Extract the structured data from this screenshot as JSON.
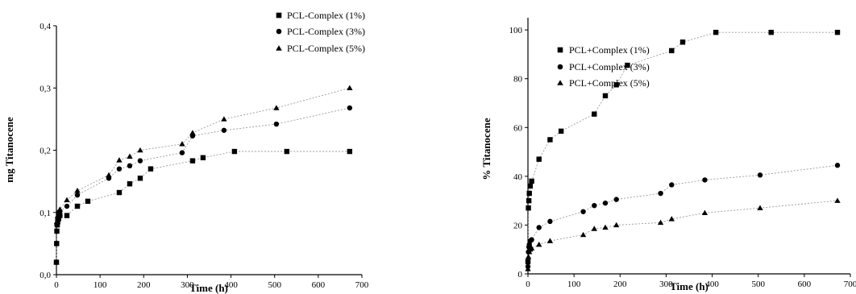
{
  "chart_data": [
    {
      "type": "scatter",
      "title": "",
      "xlabel": "Time (h)",
      "ylabel": "mg Titanocene",
      "xlim": [
        0,
        700
      ],
      "ylim": [
        0,
        0.4
      ],
      "xticks": [
        "0",
        "100",
        "200",
        "300",
        "400",
        "500",
        "600",
        "700"
      ],
      "yticks": [
        "0,0",
        "0,1",
        "0,2",
        "0,3",
        "0,4"
      ],
      "legend_position": "top-right",
      "series": [
        {
          "name": "PCL-Complex (1%)",
          "marker": "square",
          "points": [
            [
              0,
              0.02
            ],
            [
              0.5,
              0.05
            ],
            [
              1,
              0.07
            ],
            [
              2,
              0.08
            ],
            [
              3,
              0.085
            ],
            [
              5,
              0.09
            ],
            [
              8,
              0.095
            ],
            [
              24,
              0.095
            ],
            [
              48,
              0.11
            ],
            [
              72,
              0.118
            ],
            [
              144,
              0.132
            ],
            [
              168,
              0.146
            ],
            [
              192,
              0.155
            ],
            [
              216,
              0.17
            ],
            [
              312,
              0.183
            ],
            [
              336,
              0.188
            ],
            [
              408,
              0.198
            ],
            [
              528,
              0.198
            ],
            [
              672,
              0.198
            ]
          ]
        },
        {
          "name": "PCL-Complex (3%)",
          "marker": "circle",
          "points": [
            [
              0,
              0.02
            ],
            [
              1,
              0.08
            ],
            [
              3,
              0.09
            ],
            [
              5,
              0.1
            ],
            [
              8,
              0.102
            ],
            [
              24,
              0.11
            ],
            [
              48,
              0.128
            ],
            [
              120,
              0.155
            ],
            [
              144,
              0.17
            ],
            [
              168,
              0.175
            ],
            [
              192,
              0.183
            ],
            [
              288,
              0.196
            ],
            [
              312,
              0.223
            ],
            [
              384,
              0.232
            ],
            [
              504,
              0.242
            ],
            [
              672,
              0.268
            ]
          ]
        },
        {
          "name": "PCL-Complex (5%)",
          "marker": "triangle",
          "points": [
            [
              0,
              0.02
            ],
            [
              1,
              0.085
            ],
            [
              3,
              0.095
            ],
            [
              5,
              0.1
            ],
            [
              8,
              0.105
            ],
            [
              24,
              0.12
            ],
            [
              48,
              0.135
            ],
            [
              120,
              0.16
            ],
            [
              144,
              0.184
            ],
            [
              168,
              0.19
            ],
            [
              192,
              0.2
            ],
            [
              288,
              0.21
            ],
            [
              312,
              0.228
            ],
            [
              384,
              0.25
            ],
            [
              504,
              0.268
            ],
            [
              672,
              0.3
            ]
          ]
        }
      ]
    },
    {
      "type": "scatter",
      "title": "",
      "xlabel": "Time (h)",
      "ylabel": "% Titanocene",
      "xlim": [
        0,
        700
      ],
      "ylim": [
        0,
        105
      ],
      "xticks": [
        "0",
        "100",
        "200",
        "300",
        "400",
        "500",
        "600",
        "700"
      ],
      "yticks": [
        "0",
        "20",
        "40",
        "60",
        "80",
        "100"
      ],
      "legend_position": "right",
      "series": [
        {
          "name": "PCL+Complex (1%)",
          "marker": "square",
          "points": [
            [
              0,
              5
            ],
            [
              1,
              27
            ],
            [
              2,
              30
            ],
            [
              3,
              33
            ],
            [
              5,
              36
            ],
            [
              8,
              38
            ],
            [
              24,
              47
            ],
            [
              48,
              55
            ],
            [
              72,
              58.5
            ],
            [
              144,
              65.5
            ],
            [
              168,
              73
            ],
            [
              192,
              77.5
            ],
            [
              216,
              85.5
            ],
            [
              312,
              91.5
            ],
            [
              336,
              95
            ],
            [
              408,
              99
            ],
            [
              528,
              99
            ],
            [
              672,
              99
            ]
          ]
        },
        {
          "name": "PCL+Complex (3%)",
          "marker": "circle",
          "points": [
            [
              0,
              3
            ],
            [
              1,
              9
            ],
            [
              2,
              11
            ],
            [
              3,
              12
            ],
            [
              5,
              13.5
            ],
            [
              8,
              14
            ],
            [
              24,
              19
            ],
            [
              48,
              21.5
            ],
            [
              120,
              25.5
            ],
            [
              144,
              28
            ],
            [
              168,
              29
            ],
            [
              192,
              30.5
            ],
            [
              288,
              33
            ],
            [
              312,
              36.5
            ],
            [
              384,
              38.5
            ],
            [
              504,
              40.5
            ],
            [
              672,
              44.5
            ]
          ]
        },
        {
          "name": "PCL+Complex (5%)",
          "marker": "triangle",
          "points": [
            [
              0,
              2
            ],
            [
              1,
              7
            ],
            [
              3,
              9
            ],
            [
              5,
              10
            ],
            [
              8,
              10.5
            ],
            [
              24,
              12
            ],
            [
              48,
              13.5
            ],
            [
              120,
              16
            ],
            [
              144,
              18.5
            ],
            [
              168,
              19
            ],
            [
              192,
              20
            ],
            [
              288,
              21
            ],
            [
              312,
              22.5
            ],
            [
              384,
              25
            ],
            [
              504,
              27
            ],
            [
              672,
              30
            ]
          ]
        }
      ]
    }
  ]
}
